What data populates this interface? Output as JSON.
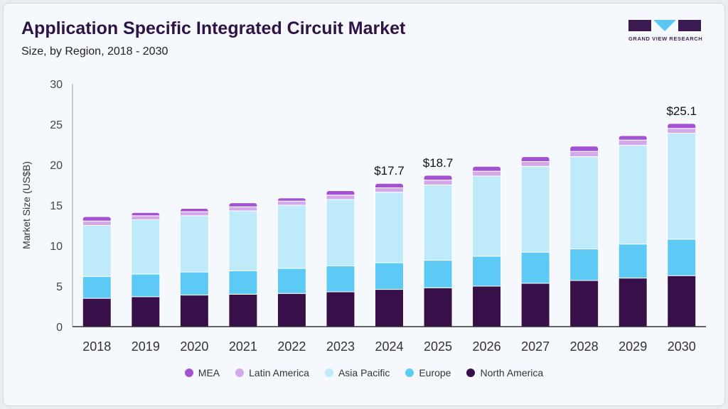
{
  "header": {
    "title": "Application Specific Integrated Circuit Market",
    "subtitle": "Size, by Region, 2018 - 2030"
  },
  "logo": {
    "text": "GRAND VIEW RESEARCH",
    "color": "#3b1a4f",
    "accent": "#5bc7f2"
  },
  "chart_data": {
    "type": "bar",
    "stacked": true,
    "title": "Application Specific Integrated Circuit Market",
    "subtitle": "Size, by Region, 2018 - 2030",
    "xlabel": "",
    "ylabel": "Market Size (US$B)",
    "ylim": [
      0,
      30
    ],
    "yticks": [
      0,
      5,
      10,
      15,
      20,
      25,
      30
    ],
    "grid": false,
    "legend_placement": "bottom",
    "categories": [
      "2018",
      "2019",
      "2020",
      "2021",
      "2022",
      "2023",
      "2024",
      "2025",
      "2026",
      "2027",
      "2028",
      "2029",
      "2030"
    ],
    "series": [
      {
        "name": "North America",
        "color": "#37104a",
        "values": [
          3.5,
          3.7,
          3.9,
          4.0,
          4.1,
          4.3,
          4.6,
          4.8,
          5.0,
          5.35,
          5.7,
          6.0,
          6.3
        ]
      },
      {
        "name": "Europe",
        "color": "#5ccaf4",
        "values": [
          2.7,
          2.8,
          2.85,
          2.9,
          3.1,
          3.2,
          3.3,
          3.4,
          3.7,
          3.85,
          3.9,
          4.2,
          4.5
        ]
      },
      {
        "name": "Asia Pacific",
        "color": "#beeaf9",
        "values": [
          6.3,
          6.7,
          6.95,
          7.4,
          7.8,
          8.2,
          8.7,
          9.3,
          9.9,
          10.6,
          11.4,
          12.2,
          13.1
        ]
      },
      {
        "name": "Latin America",
        "color": "#d4a9ea",
        "values": [
          0.55,
          0.5,
          0.5,
          0.5,
          0.5,
          0.55,
          0.55,
          0.6,
          0.6,
          0.6,
          0.65,
          0.65,
          0.6
        ]
      },
      {
        "name": "MEA",
        "color": "#a452d4",
        "values": [
          0.55,
          0.4,
          0.4,
          0.5,
          0.4,
          0.55,
          0.55,
          0.6,
          0.6,
          0.6,
          0.65,
          0.55,
          0.6
        ]
      }
    ],
    "legend_order": [
      "MEA",
      "Latin America",
      "Asia Pacific",
      "Europe",
      "North America"
    ],
    "annotations": [
      {
        "category": "2024",
        "label": "$17.7",
        "value": 17.7
      },
      {
        "category": "2025",
        "label": "$18.7",
        "value": 18.7
      },
      {
        "category": "2030",
        "label": "$25.1",
        "value": 25.1
      }
    ]
  }
}
